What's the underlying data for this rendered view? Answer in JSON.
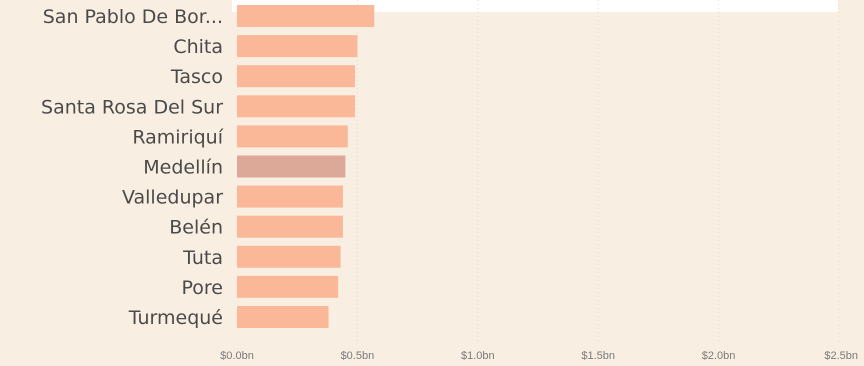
{
  "chart_data": {
    "type": "bar",
    "orientation": "horizontal",
    "categories": [
      "San Pablo De Bor...",
      "Chita",
      "Tasco",
      "Santa Rosa Del Sur",
      "Ramiriquí",
      "Medellín",
      "Valledupar",
      "Belén",
      "Tuta",
      "Pore",
      "Turmequé"
    ],
    "values": [
      0.57,
      0.5,
      0.49,
      0.49,
      0.46,
      0.45,
      0.44,
      0.44,
      0.43,
      0.42,
      0.38
    ],
    "value_unit": "bn",
    "highlighted_category": "Medellín",
    "xlim": [
      0,
      2.5
    ],
    "x_ticks": [
      "$0.0bn",
      "$0.5bn",
      "$1.0bn",
      "$1.5bn",
      "$2.0bn",
      "$2.5bn"
    ],
    "x_tick_values": [
      0,
      0.5,
      1.0,
      1.5,
      2.0,
      2.5
    ],
    "grid": true,
    "colors": {
      "bar": "#fbb899",
      "bar_highlight": "#dca897",
      "background": "#f9eee2",
      "grid": "#e8ddd0",
      "text": "#4a4a4a",
      "tick_text": "#7a7a7a"
    }
  }
}
